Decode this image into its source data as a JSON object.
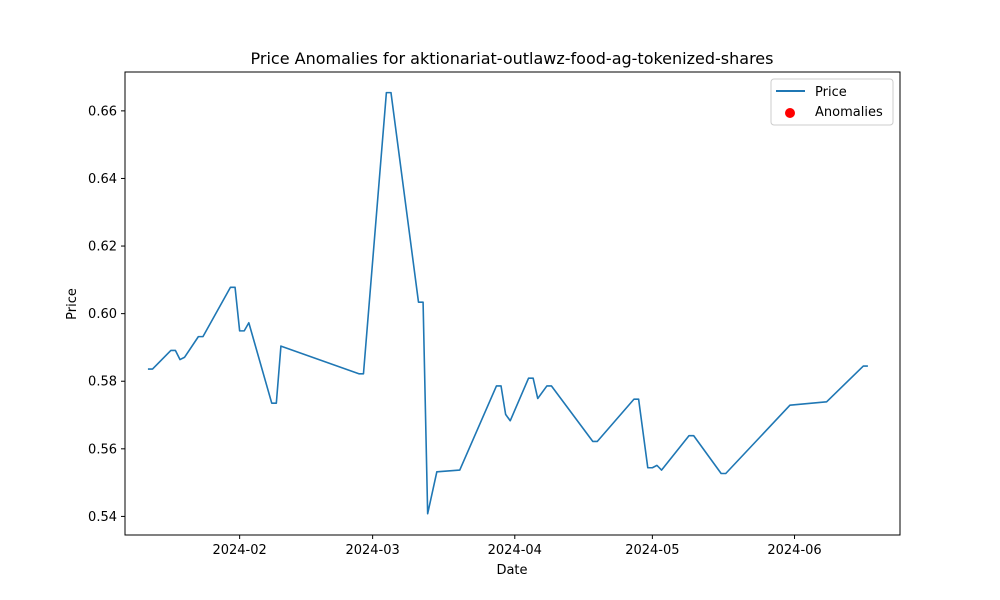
{
  "chart_data": {
    "type": "line",
    "title": "Price Anomalies for aktionariat-outlawz-food-ag-tokenized-shares",
    "xlabel": "Date",
    "ylabel": "Price",
    "x_type": "date",
    "xlim": [
      "2024-01-07",
      "2024-06-24"
    ],
    "ylim": [
      0.5345,
      0.6715
    ],
    "x_ticks": [
      "2024-02-01",
      "2024-03-01",
      "2024-04-01",
      "2024-05-01",
      "2024-06-01"
    ],
    "x_tick_labels": [
      "2024-02",
      "2024-03",
      "2024-04",
      "2024-05",
      "2024-06"
    ],
    "y_ticks": [
      0.54,
      0.56,
      0.58,
      0.6,
      0.62,
      0.64,
      0.66
    ],
    "y_tick_labels": [
      "0.54",
      "0.56",
      "0.58",
      "0.60",
      "0.62",
      "0.64",
      "0.66"
    ],
    "grid": false,
    "legend": {
      "placement": "top-right",
      "entries": [
        "Price",
        "Anomalies"
      ]
    },
    "series": [
      {
        "name": "Price",
        "color": "#1f77b4",
        "kind": "line",
        "points": [
          [
            "2024-01-12",
            0.5836
          ],
          [
            "2024-01-13",
            0.5836
          ],
          [
            "2024-01-17",
            0.5891
          ],
          [
            "2024-01-18",
            0.5891
          ],
          [
            "2024-01-19",
            0.5864
          ],
          [
            "2024-01-20",
            0.5871
          ],
          [
            "2024-01-23",
            0.5932
          ],
          [
            "2024-01-24",
            0.5932
          ],
          [
            "2024-01-30",
            0.6078
          ],
          [
            "2024-01-31",
            0.6078
          ],
          [
            "2024-02-01",
            0.5949
          ],
          [
            "2024-02-02",
            0.5949
          ],
          [
            "2024-02-03",
            0.5973
          ],
          [
            "2024-02-08",
            0.5735
          ],
          [
            "2024-02-09",
            0.5735
          ],
          [
            "2024-02-10",
            0.5904
          ],
          [
            "2024-02-27",
            0.5822
          ],
          [
            "2024-02-28",
            0.5822
          ],
          [
            "2024-03-04",
            0.6654
          ],
          [
            "2024-03-05",
            0.6654
          ],
          [
            "2024-03-11",
            0.6034
          ],
          [
            "2024-03-12",
            0.6034
          ],
          [
            "2024-03-13",
            0.5408
          ],
          [
            "2024-03-15",
            0.5532
          ],
          [
            "2024-03-20",
            0.5537
          ],
          [
            "2024-03-28",
            0.5786
          ],
          [
            "2024-03-29",
            0.5786
          ],
          [
            "2024-03-30",
            0.5702
          ],
          [
            "2024-03-31",
            0.5683
          ],
          [
            "2024-04-04",
            0.5809
          ],
          [
            "2024-04-05",
            0.5809
          ],
          [
            "2024-04-06",
            0.5749
          ],
          [
            "2024-04-08",
            0.5786
          ],
          [
            "2024-04-09",
            0.5786
          ],
          [
            "2024-04-18",
            0.5622
          ],
          [
            "2024-04-19",
            0.5622
          ],
          [
            "2024-04-27",
            0.5747
          ],
          [
            "2024-04-28",
            0.5747
          ],
          [
            "2024-04-30",
            0.5544
          ],
          [
            "2024-05-01",
            0.5544
          ],
          [
            "2024-05-02",
            0.5551
          ],
          [
            "2024-05-03",
            0.5537
          ],
          [
            "2024-05-09",
            0.5639
          ],
          [
            "2024-05-10",
            0.5639
          ],
          [
            "2024-05-16",
            0.5527
          ],
          [
            "2024-05-17",
            0.5527
          ],
          [
            "2024-05-31",
            0.5729
          ],
          [
            "2024-06-08",
            0.5739
          ],
          [
            "2024-06-16",
            0.5845
          ],
          [
            "2024-06-17",
            0.5845
          ]
        ]
      },
      {
        "name": "Anomalies",
        "color": "#ff0000",
        "kind": "scatter",
        "points": []
      }
    ]
  }
}
